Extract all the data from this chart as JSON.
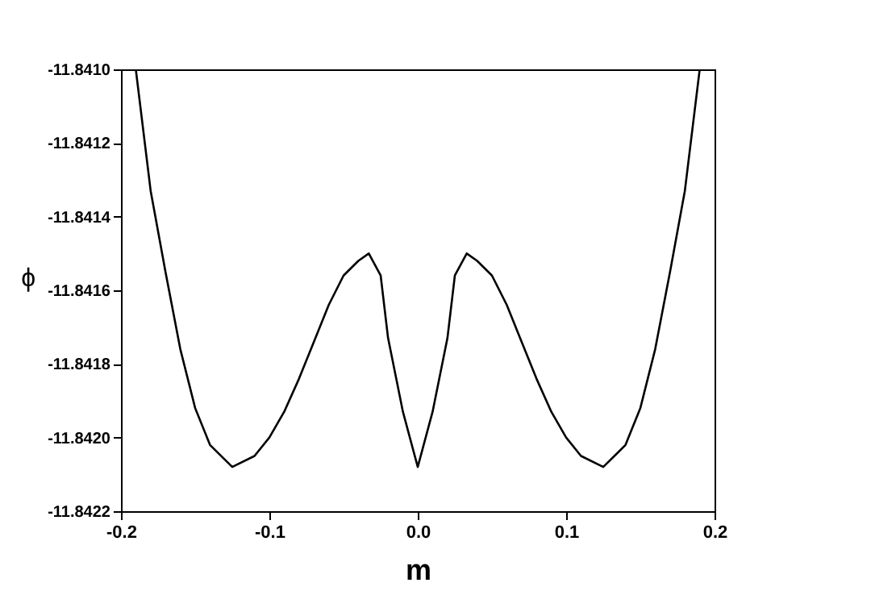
{
  "chart_data": {
    "type": "line",
    "xlabel": "m",
    "ylabel": "ϕ",
    "x": [
      -0.19,
      -0.18,
      -0.17,
      -0.16,
      -0.15,
      -0.14,
      -0.125,
      -0.11,
      -0.1,
      -0.09,
      -0.08,
      -0.07,
      -0.06,
      -0.05,
      -0.04,
      -0.033,
      -0.025,
      -0.02,
      -0.01,
      0,
      0.01,
      0.02,
      0.025,
      0.033,
      0.04,
      0.05,
      0.06,
      0.07,
      0.08,
      0.09,
      0.1,
      0.11,
      0.125,
      0.14,
      0.15,
      0.16,
      0.17,
      0.18,
      0.19
    ],
    "series": [
      {
        "color": "#000000",
        "values": [
          -11.841,
          -11.84133,
          -11.84155,
          -11.84176,
          -11.84192,
          -11.84202,
          -11.84208,
          -11.84205,
          -11.842,
          -11.84193,
          -11.84184,
          -11.84174,
          -11.84164,
          -11.84156,
          -11.84152,
          -11.8415,
          -11.84156,
          -11.84173,
          -11.84193,
          -11.84208,
          -11.84193,
          -11.84173,
          -11.84156,
          -11.8415,
          -11.84152,
          -11.84156,
          -11.84164,
          -11.84174,
          -11.84184,
          -11.84193,
          -11.842,
          -11.84205,
          -11.84208,
          -11.84202,
          -11.84192,
          -11.84176,
          -11.84155,
          -11.84133,
          -11.841
        ]
      }
    ],
    "xlim": [
      -0.2,
      0.2
    ],
    "xticks": [
      {
        "value": -0.2,
        "label": "-0.2"
      },
      {
        "value": -0.1,
        "label": "-0.1"
      },
      {
        "value": 0,
        "label": "0.0"
      },
      {
        "value": 0.1,
        "label": "0.1"
      },
      {
        "value": 0.2,
        "label": "0.2"
      }
    ],
    "ylim": [
      -11.8422,
      -11.841
    ],
    "yticks": [
      {
        "value": -11.8422,
        "label": "-11.8422"
      },
      {
        "value": -11.842,
        "label": "-11.8420"
      },
      {
        "value": -11.8418,
        "label": "-11.8418"
      },
      {
        "value": -11.8416,
        "label": "-11.8416"
      },
      {
        "value": -11.8414,
        "label": "-11.8414"
      },
      {
        "value": -11.8412,
        "label": "-11.8412"
      },
      {
        "value": -11.841,
        "label": "-11.8410"
      }
    ],
    "grid": false,
    "marker": "none",
    "line_style": "solid"
  }
}
